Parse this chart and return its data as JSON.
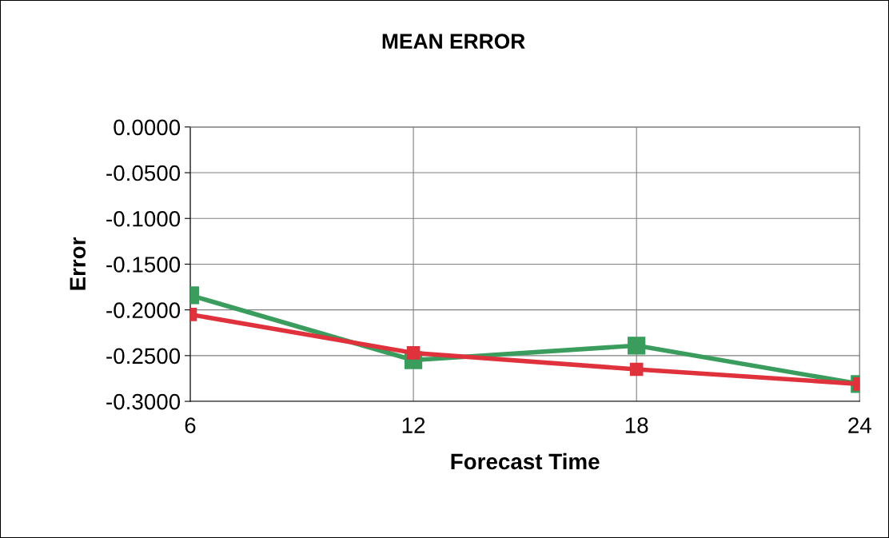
{
  "chart_data": {
    "type": "line",
    "title": "MEAN ERROR",
    "xlabel": "Forecast Time",
    "ylabel": "Error",
    "x": [
      6,
      12,
      18,
      24
    ],
    "series": [
      {
        "color": "#3a9d5d",
        "values": [
          -0.184,
          -0.255,
          -0.239,
          -0.281
        ]
      },
      {
        "color": "#e0323c",
        "values": [
          -0.205,
          -0.247,
          -0.265,
          -0.281
        ]
      }
    ],
    "xlim": [
      6,
      24
    ],
    "xticks": [
      6,
      12,
      18,
      24
    ],
    "ylim": [
      -0.3,
      0
    ],
    "yticks": [
      {
        "value": 0,
        "label": "0.0000"
      },
      {
        "value": -0.05,
        "label": "-0.0500"
      },
      {
        "value": -0.1,
        "label": "-0.1000"
      },
      {
        "value": -0.15,
        "label": "-0.1500"
      },
      {
        "value": -0.2,
        "label": "-0.2000"
      },
      {
        "value": -0.25,
        "label": "-0.2500"
      },
      {
        "value": -0.3,
        "label": "-0.3000"
      }
    ],
    "grid": true,
    "marker": "square",
    "line_style": "solid",
    "legend": false
  }
}
